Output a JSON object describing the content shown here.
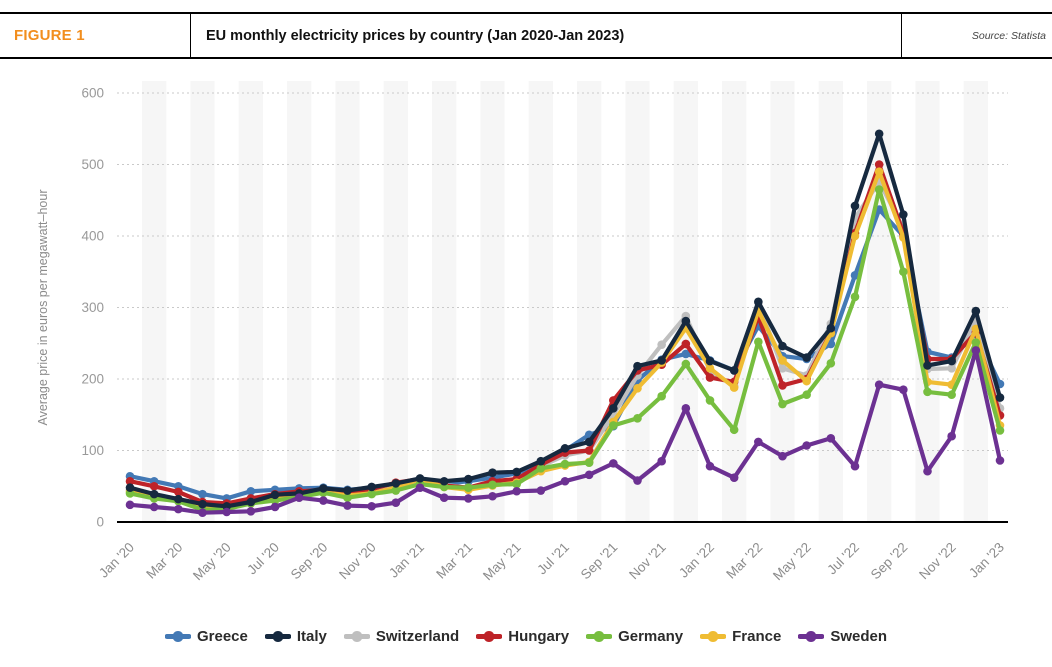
{
  "header": {
    "figure_label": "FIGURE 1",
    "title": "EU monthly electricity prices by country (Jan 2020-Jan 2023)",
    "source": "Source: Statista"
  },
  "chart_data": {
    "type": "line",
    "title": "EU monthly electricity prices by country (Jan 2020-Jan 2023)",
    "xlabel": "",
    "ylabel": "Average price in euros per megawatt–hour",
    "ylim": [
      0,
      600
    ],
    "yticks": [
      0,
      100,
      200,
      300,
      400,
      500,
      600
    ],
    "grid": "horizontal-dotted",
    "legend_position": "bottom",
    "x_tick_labels": [
      "Jan '20",
      "Mar '20",
      "May '20",
      "Jul '20",
      "Sep '20",
      "Nov '20",
      "Jan '21",
      "Mar '21",
      "May '21",
      "Jul '21",
      "Sep '21",
      "Nov '21",
      "Jan '22",
      "Mar '22",
      "May '22",
      "Jul '22",
      "Sep '22",
      "Nov '22",
      "Jan '23"
    ],
    "months": [
      "Jan '20",
      "Feb '20",
      "Mar '20",
      "Apr '20",
      "May '20",
      "Jun '20",
      "Jul '20",
      "Aug '20",
      "Sep '20",
      "Oct '20",
      "Nov '20",
      "Dec '20",
      "Jan '21",
      "Feb '21",
      "Mar '21",
      "Apr '21",
      "May '21",
      "Jun '21",
      "Jul '21",
      "Aug '21",
      "Sep '21",
      "Oct '21",
      "Nov '21",
      "Dec '21",
      "Jan '22",
      "Feb '22",
      "Mar '22",
      "Apr '22",
      "May '22",
      "Jun '22",
      "Jul '22",
      "Aug '22",
      "Sep '22",
      "Oct '22",
      "Nov '22",
      "Dec '22",
      "Jan '23"
    ],
    "unit": "euros per megawatt-hour",
    "series": [
      {
        "name": "Greece",
        "color": "#4379B5",
        "values": [
          64,
          57,
          50,
          39,
          33,
          43,
          45,
          47,
          48,
          45,
          48,
          53,
          55,
          53,
          57,
          62,
          68,
          82,
          100,
          122,
          134,
          198,
          227,
          235,
          226,
          212,
          274,
          232,
          228,
          249,
          345,
          437,
          400,
          238,
          230,
          263,
          193
        ]
      },
      {
        "name": "Italy",
        "color": "#16293F",
        "values": [
          48,
          39,
          32,
          25,
          22,
          28,
          38,
          40,
          47,
          44,
          49,
          54,
          61,
          57,
          60,
          69,
          70,
          85,
          103,
          112,
          159,
          218,
          226,
          281,
          225,
          212,
          308,
          246,
          230,
          271,
          442,
          543,
          430,
          219,
          225,
          295,
          174
        ]
      },
      {
        "name": "Switzerland",
        "color": "#BFBFBF",
        "values": [
          45,
          37,
          31,
          25,
          23,
          28,
          33,
          36,
          43,
          38,
          42,
          48,
          59,
          52,
          48,
          55,
          58,
          78,
          93,
          100,
          150,
          205,
          248,
          288,
          211,
          190,
          307,
          215,
          205,
          277,
          425,
          476,
          411,
          214,
          215,
          281,
          159
        ]
      },
      {
        "name": "Hungary",
        "color": "#BE2328",
        "values": [
          57,
          50,
          42,
          28,
          26,
          33,
          39,
          43,
          45,
          42,
          46,
          55,
          60,
          51,
          48,
          57,
          60,
          80,
          97,
          100,
          170,
          212,
          220,
          249,
          202,
          196,
          288,
          191,
          200,
          265,
          404,
          500,
          404,
          228,
          228,
          265,
          149
        ]
      },
      {
        "name": "Germany",
        "color": "#77BE3F",
        "values": [
          40,
          33,
          29,
          17,
          18,
          26,
          30,
          35,
          41,
          34,
          39,
          44,
          53,
          49,
          48,
          52,
          53,
          75,
          81,
          83,
          135,
          145,
          176,
          221,
          170,
          129,
          252,
          165,
          178,
          222,
          315,
          465,
          350,
          182,
          178,
          251,
          128
        ]
      },
      {
        "name": "France",
        "color": "#EFBC33",
        "values": [
          43,
          35,
          30,
          21,
          19,
          27,
          32,
          38,
          42,
          37,
          40,
          48,
          60,
          49,
          45,
          51,
          55,
          71,
          79,
          84,
          140,
          187,
          223,
          271,
          215,
          188,
          296,
          226,
          197,
          264,
          400,
          490,
          398,
          196,
          192,
          270,
          135
        ]
      },
      {
        "name": "Sweden",
        "color": "#6C3192",
        "values": [
          24,
          21,
          18,
          13,
          14,
          15,
          21,
          34,
          30,
          23,
          22,
          27,
          48,
          34,
          33,
          36,
          43,
          44,
          57,
          66,
          82,
          58,
          85,
          159,
          78,
          62,
          112,
          92,
          107,
          117,
          78,
          192,
          185,
          71,
          120,
          240,
          86
        ]
      }
    ],
    "draw_order": [
      "Greece",
      "Switzerland",
      "Hungary",
      "France",
      "Germany",
      "Italy",
      "Sweden"
    ]
  }
}
